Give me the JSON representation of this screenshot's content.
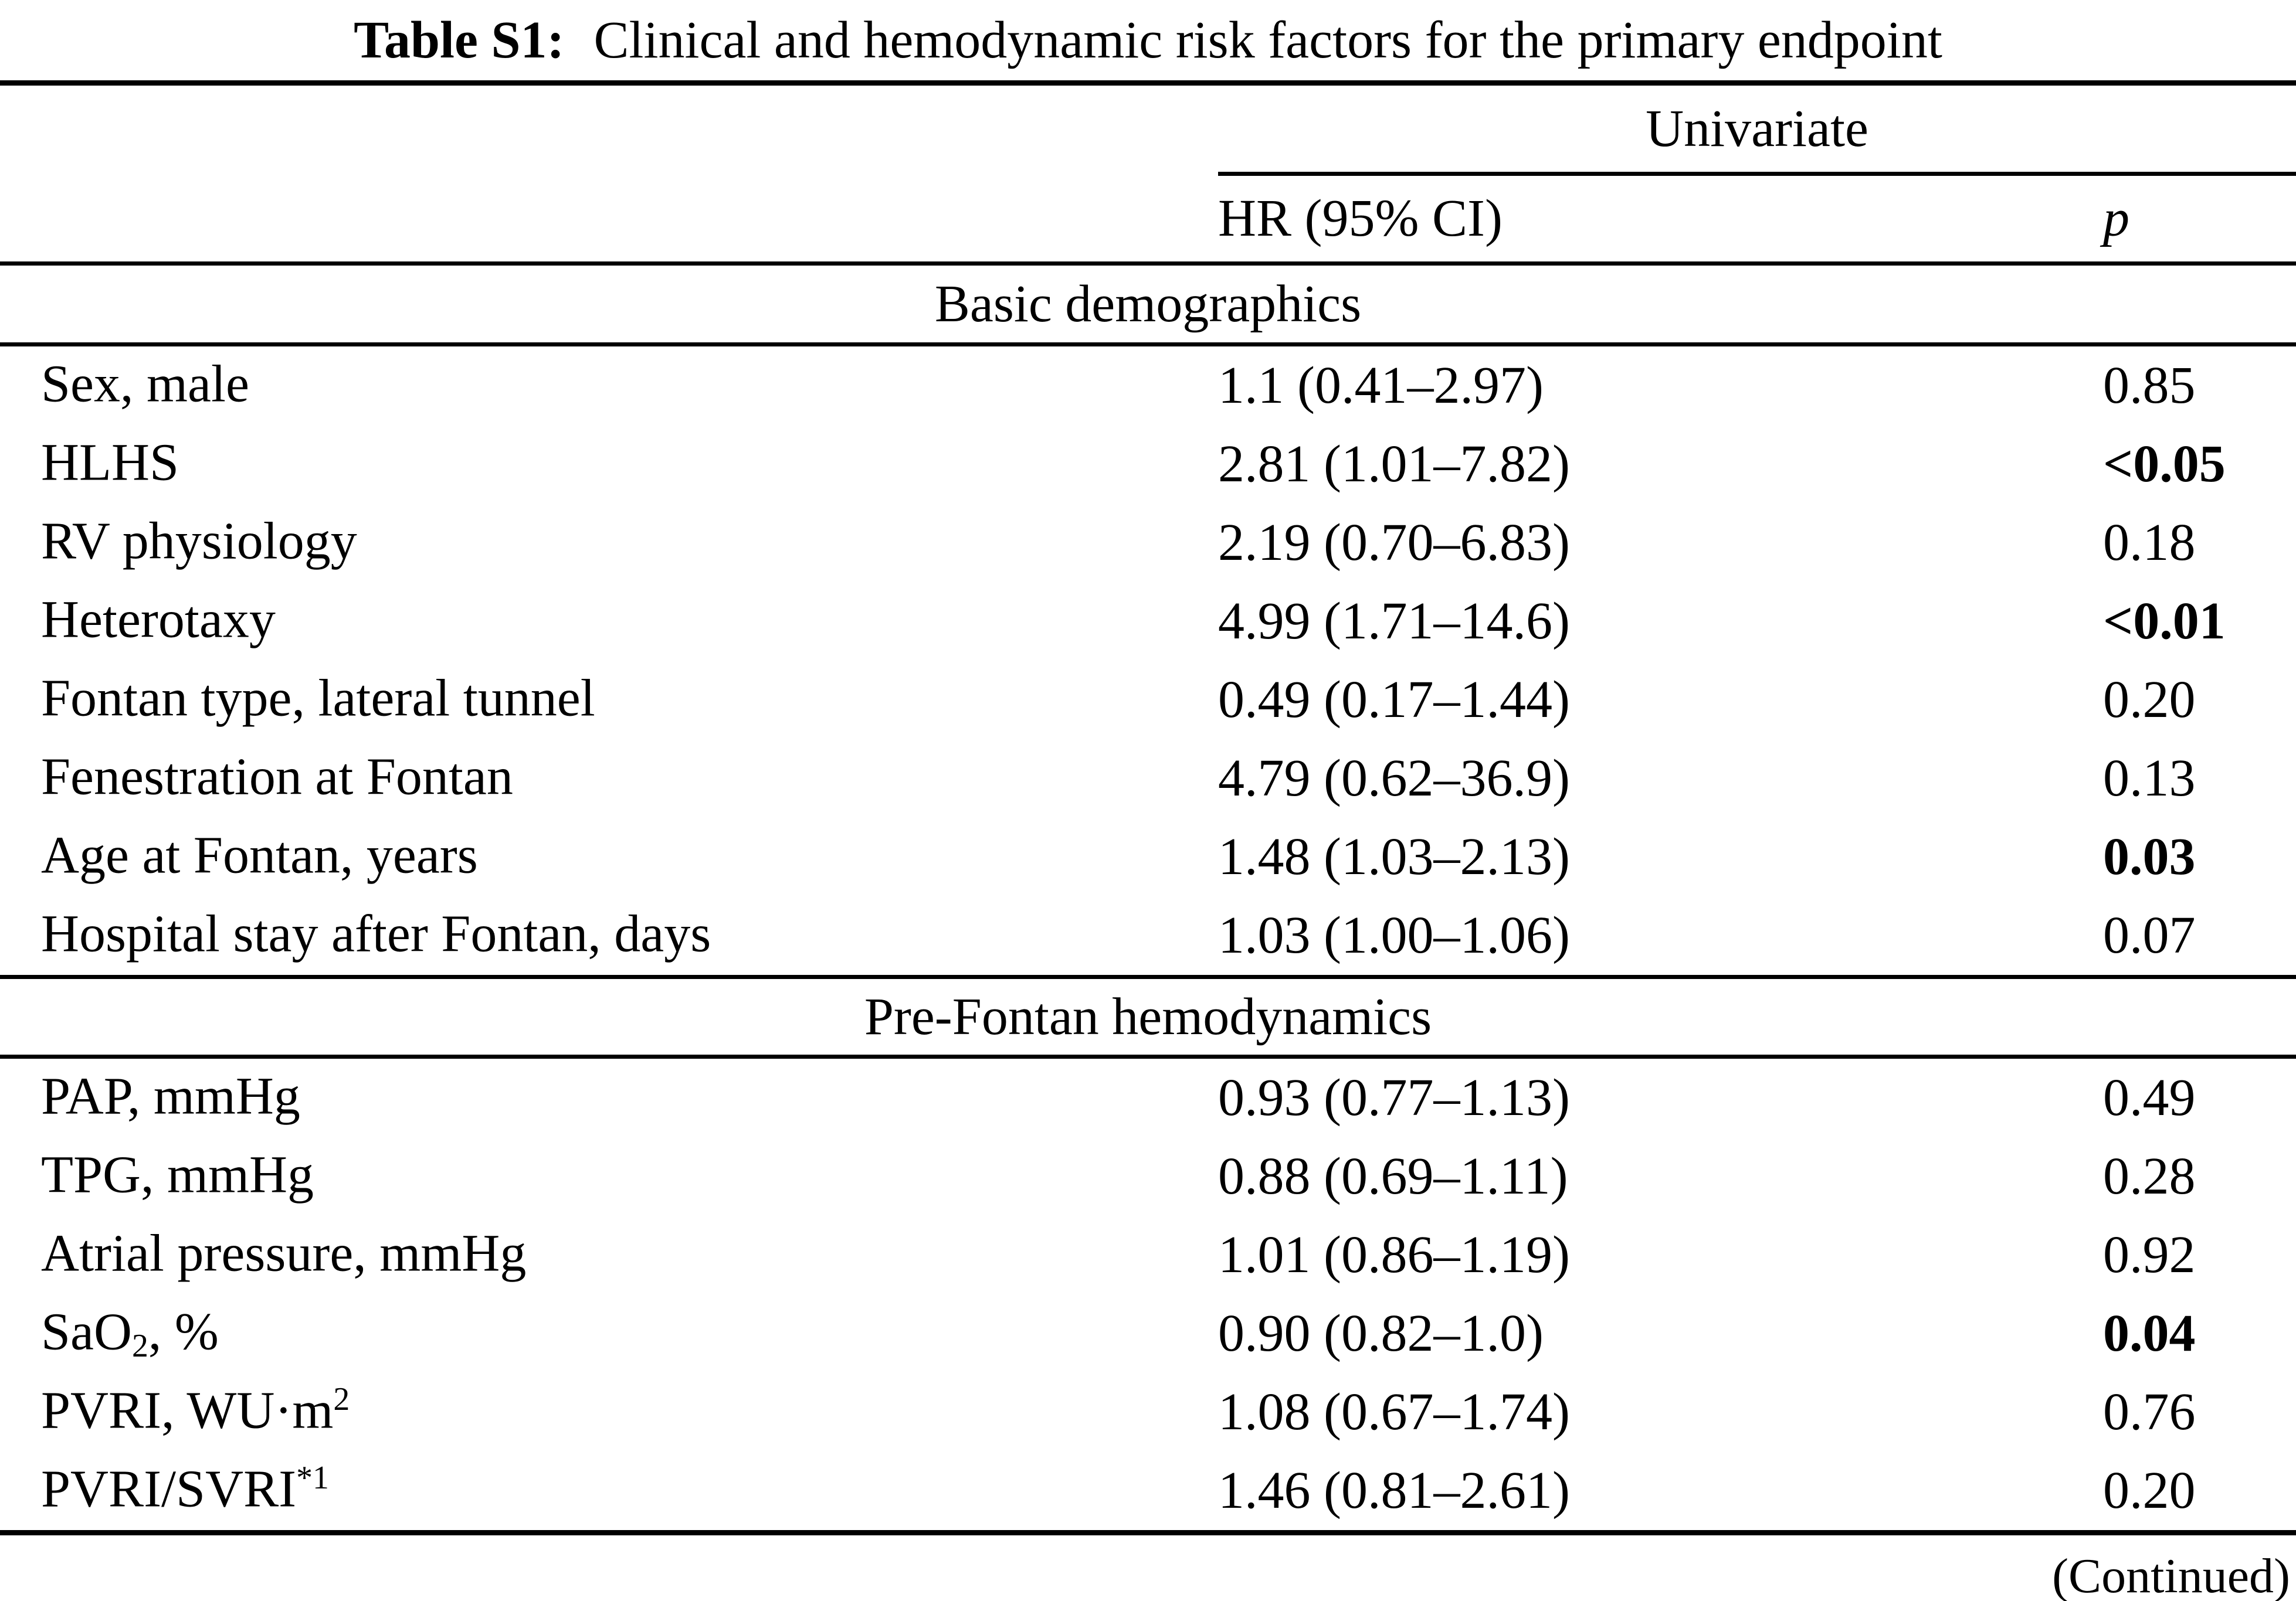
{
  "title": {
    "label": "Table S1:",
    "text": "Clinical and hemodynamic risk factors for the primary endpoint"
  },
  "columns": {
    "group": "Univariate",
    "hr": "HR (95% CI)",
    "p": "p"
  },
  "sections": [
    {
      "header": "Basic demographics",
      "rows": [
        {
          "label": "Sex, male",
          "hr": "1.1 (0.41–2.97)",
          "p": "0.85"
        },
        {
          "label": "HLHS",
          "hr": "2.81 (1.01–7.82)",
          "p": "<0.05",
          "p_bold": true
        },
        {
          "label": "RV physiology",
          "hr": "2.19 (0.70–6.83)",
          "p": "0.18"
        },
        {
          "label": "Heterotaxy",
          "hr": "4.99 (1.71–14.6)",
          "p": "<0.01",
          "p_bold": true
        },
        {
          "label": "Fontan type, lateral tunnel",
          "hr": "0.49 (0.17–1.44)",
          "p": "0.20"
        },
        {
          "label": "Fenestration at Fontan",
          "hr": "4.79 (0.62–36.9)",
          "p": "0.13"
        },
        {
          "label": "Age at Fontan, years",
          "hr": "1.48 (1.03–2.13)",
          "p": "0.03",
          "p_bold": true
        },
        {
          "label": "Hospital stay after Fontan, days",
          "hr": "1.03 (1.00–1.06)",
          "p": "0.07"
        }
      ]
    },
    {
      "header": "Pre-Fontan hemodynamics",
      "rows": [
        {
          "label": "PAP, mmHg",
          "hr": "0.93 (0.77–1.13)",
          "p": "0.49"
        },
        {
          "label": "TPG, mmHg",
          "hr": "0.88 (0.69–1.11)",
          "p": "0.28"
        },
        {
          "label": "Atrial pressure, mmHg",
          "hr": "1.01 (0.86–1.19)",
          "p": "0.92"
        },
        {
          "label": "SaO",
          "label_sub": "2",
          "label_post": ", %",
          "hr": "0.90 (0.82–1.0)",
          "p": "0.04",
          "p_bold": true
        },
        {
          "label": "PVRI, WU·m",
          "label_sup": "2",
          "hr": "1.08 (0.67–1.74)",
          "p": "0.76"
        },
        {
          "label": "PVRI/SVRI",
          "label_sup": "*1",
          "hr": "1.46 (0.81–2.61)",
          "p": "0.20"
        }
      ]
    }
  ],
  "footer": {
    "continued": "(Continued)"
  }
}
